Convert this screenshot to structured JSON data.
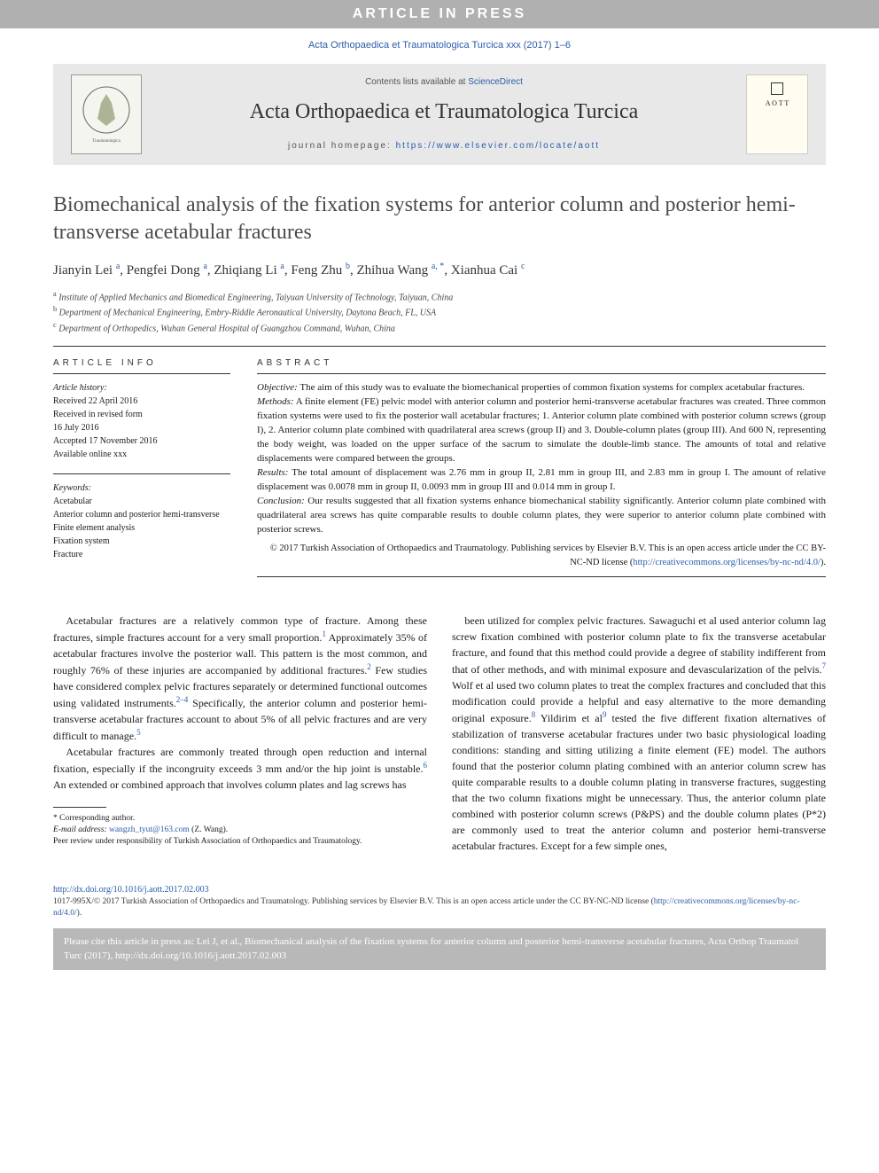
{
  "banner": {
    "text": "ARTICLE IN PRESS"
  },
  "citation_line": "Acta Orthopaedica et Traumatologica Turcica xxx (2017) 1–6",
  "masthead": {
    "contents_prefix": "Contents lists available at ",
    "contents_link": "ScienceDirect",
    "journal_name": "Acta Orthopaedica et Traumatologica Turcica",
    "homepage_label": "journal homepage: ",
    "homepage_url": "https://www.elsevier.com/locate/aott",
    "cover_text": "A O T T"
  },
  "article": {
    "title": "Biomechanical analysis of the fixation systems for anterior column and posterior hemi-transverse acetabular fractures",
    "authors_html": "Jianyin Lei <sup>a</sup>, Pengfei Dong <sup>a</sup>, Zhiqiang Li <sup>a</sup>, Feng Zhu <sup>b</sup>, Zhihua Wang <sup>a, *</sup>, Xianhua Cai <sup>c</sup>",
    "affiliations": [
      "a Institute of Applied Mechanics and Biomedical Engineering, Taiyuan University of Technology, Taiyuan, China",
      "b Department of Mechanical Engineering, Embry-Riddle Aeronautical University, Daytona Beach, FL, USA",
      "c Department of Orthopedics, Wuhan General Hospital of Guangzhou Command, Wuhan, China"
    ]
  },
  "info": {
    "heading": "ARTICLE INFO",
    "history_title": "Article history:",
    "history": [
      "Received 22 April 2016",
      "Received in revised form",
      "16 July 2016",
      "Accepted 17 November 2016",
      "Available online xxx"
    ],
    "keywords_title": "Keywords:",
    "keywords": [
      "Acetabular",
      "Anterior column and posterior hemi-transverse",
      "Finite element analysis",
      "Fixation system",
      "Fracture"
    ]
  },
  "abstract": {
    "heading": "ABSTRACT",
    "objective_label": "Objective:",
    "objective": "The aim of this study was to evaluate the biomechanical properties of common fixation systems for complex acetabular fractures.",
    "methods_label": "Methods:",
    "methods": "A finite element (FE) pelvic model with anterior column and posterior hemi-transverse acetabular fractures was created. Three common fixation systems were used to fix the posterior wall acetabular fractures; 1. Anterior column plate combined with posterior column screws (group I), 2. Anterior column plate combined with quadrilateral area screws (group II) and 3. Double-column plates (group III). And 600 N, representing the body weight, was loaded on the upper surface of the sacrum to simulate the double-limb stance. The amounts of total and relative displacements were compared between the groups.",
    "results_label": "Results:",
    "results": "The total amount of displacement was 2.76 mm in group II, 2.81 mm in group III, and 2.83 mm in group I. The amount of relative displacement was 0.0078 mm in group II, 0.0093 mm in group III and 0.014 mm in group I.",
    "conclusion_label": "Conclusion:",
    "conclusion": "Our results suggested that all fixation systems enhance biomechanical stability significantly. Anterior column plate combined with quadrilateral area screws has quite comparable results to double column plates, they were superior to anterior column plate combined with posterior screws.",
    "copyright": "© 2017 Turkish Association of Orthopaedics and Traumatology. Publishing services by Elsevier B.V. This is an open access article under the CC BY-NC-ND license (",
    "copyright_link": "http://creativecommons.org/licenses/by-nc-nd/4.0/",
    "copyright_suffix": ")."
  },
  "body": {
    "left": [
      "Acetabular fractures are a relatively common type of fracture. Among these fractures, simple fractures account for a very small proportion.<sup>1</sup> Approximately 35% of acetabular fractures involve the posterior wall. This pattern is the most common, and roughly 76% of these injuries are accompanied by additional fractures.<sup>2</sup> Few studies have considered complex pelvic fractures separately or determined functional outcomes using validated instruments.<sup>2–4</sup> Specifically, the anterior column and posterior hemi-transverse acetabular fractures account to about 5% of all pelvic fractures and are very difficult to manage.<sup>5</sup>",
      "Acetabular fractures are commonly treated through open reduction and internal fixation, especially if the incongruity exceeds 3 mm and/or the hip joint is unstable.<sup>6</sup> An extended or combined approach that involves column plates and lag screws has"
    ],
    "right": [
      "been utilized for complex pelvic fractures. Sawaguchi et al used anterior column lag screw fixation combined with posterior column plate to fix the transverse acetabular fracture, and found that this method could provide a degree of stability indifferent from that of other methods, and with minimal exposure and devascularization of the pelvis.<sup>7</sup> Wolf et al used two column plates to treat the complex fractures and concluded that this modification could provide a helpful and easy alternative to the more demanding original exposure.<sup>8</sup> Yildirim et al<sup>9</sup> tested the five different fixation alternatives of stabilization of transverse acetabular fractures under two basic physiological loading conditions: standing and sitting utilizing a finite element (FE) model. The authors found that the posterior column plating combined with an anterior column screw has quite comparable results to a double column plating in transverse fractures, suggesting that the two column fixations might be unnecessary. Thus, the anterior column plate combined with posterior column screws (P&PS) and the double column plates (P*2) are commonly used to treat the anterior column and posterior hemi-transverse acetabular fractures. Except for a few simple ones,"
    ]
  },
  "footnotes": {
    "corresponding": "* Corresponding author.",
    "email_label": "E-mail address: ",
    "email": "wangzh_tyut@163.com",
    "email_suffix": " (Z. Wang).",
    "peer": "Peer review under responsibility of Turkish Association of Orthopaedics and Traumatology."
  },
  "doi": {
    "url": "http://dx.doi.org/10.1016/j.aott.2017.02.003",
    "issn_line": "1017-995X/© 2017 Turkish Association of Orthopaedics and Traumatology. Publishing services by Elsevier B.V. This is an open access article under the CC BY-NC-ND license (",
    "license_link": "http://creativecommons.org/licenses/by-nc-nd/4.0/",
    "issn_suffix": ")."
  },
  "cite_box": "Please cite this article in press as: Lei J, et al., Biomechanical analysis of the fixation systems for anterior column and posterior hemi-transverse acetabular fractures, Acta Orthop Traumatol Turc (2017), http://dx.doi.org/10.1016/j.aott.2017.02.003",
  "colors": {
    "link": "#2a5caa",
    "banner_bg": "#b0b0b0",
    "masthead_bg": "#e8e8e8",
    "citebox_bg": "#b8b8b8"
  }
}
